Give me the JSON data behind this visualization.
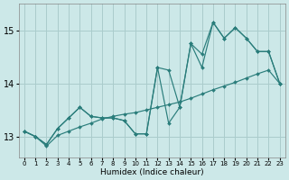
{
  "xlabel": "Humidex (Indice chaleur)",
  "xlim": [
    -0.5,
    23.5
  ],
  "ylim": [
    12.6,
    15.5
  ],
  "yticks": [
    13,
    14,
    15
  ],
  "xticks": [
    0,
    1,
    2,
    3,
    4,
    5,
    6,
    7,
    8,
    9,
    10,
    11,
    12,
    13,
    14,
    15,
    16,
    17,
    18,
    19,
    20,
    21,
    22,
    23
  ],
  "background_color": "#cce8e8",
  "grid_color": "#aacccc",
  "line_color": "#2a7d7b",
  "series1_x": [
    0,
    1,
    2,
    3,
    4,
    5,
    6,
    7,
    8,
    9,
    10,
    11,
    12,
    13,
    14,
    15,
    16,
    17,
    18,
    19,
    20,
    21,
    22,
    23
  ],
  "series1_y": [
    13.1,
    13.0,
    12.85,
    13.15,
    13.35,
    13.55,
    13.38,
    13.35,
    13.35,
    13.3,
    13.05,
    13.05,
    14.3,
    14.25,
    13.55,
    14.75,
    14.3,
    15.15,
    14.85,
    15.05,
    14.85,
    14.6,
    14.6,
    14.0
  ],
  "series2_x": [
    0,
    1,
    2,
    3,
    4,
    5,
    6,
    7,
    8,
    9,
    10,
    11,
    12,
    13,
    14,
    15,
    16,
    17,
    18,
    19,
    20,
    21,
    22,
    23
  ],
  "series2_y": [
    13.1,
    13.0,
    12.85,
    13.15,
    13.35,
    13.55,
    13.38,
    13.35,
    13.35,
    13.3,
    13.05,
    13.05,
    14.3,
    13.25,
    13.55,
    14.75,
    14.55,
    15.15,
    14.85,
    15.05,
    14.85,
    14.6,
    14.6,
    14.0
  ],
  "series3_x": [
    0,
    1,
    2,
    3,
    4,
    5,
    6,
    7,
    8,
    9,
    10,
    11,
    12,
    13,
    14,
    15,
    16,
    17,
    18,
    19,
    20,
    21,
    22,
    23
  ],
  "series3_y": [
    13.1,
    13.0,
    12.82,
    13.02,
    13.1,
    13.18,
    13.25,
    13.33,
    13.38,
    13.42,
    13.45,
    13.5,
    13.55,
    13.6,
    13.65,
    13.72,
    13.8,
    13.88,
    13.95,
    14.02,
    14.1,
    14.18,
    14.25,
    14.0
  ]
}
